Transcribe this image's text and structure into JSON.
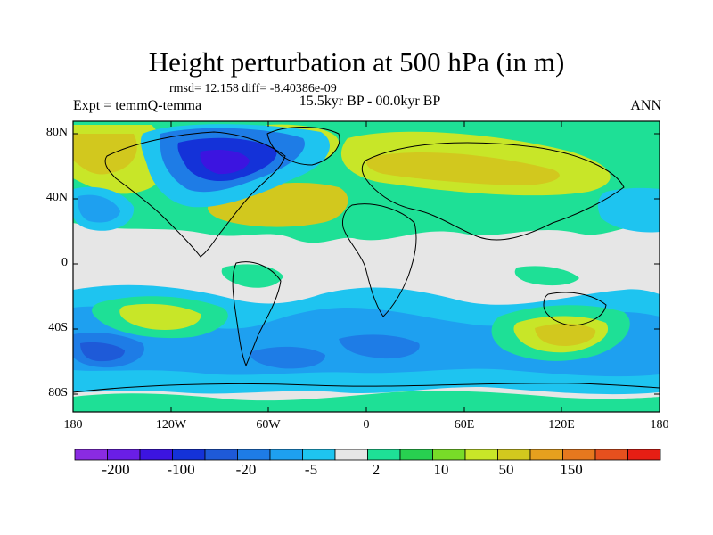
{
  "title": "Height perturbation at 500 hPa (in m)",
  "stats": "rmsd= 12.158 diff= -8.40386e-09",
  "experiment": "Expt = temmQ-temma",
  "period": "15.5kyr BP - 00.0kyr BP",
  "season": "ANN",
  "lat_ticks": [
    "80N",
    "40N",
    "0",
    "40S",
    "80S"
  ],
  "lon_ticks": [
    "180",
    "120W",
    "60W",
    "0",
    "60E",
    "120E",
    "180"
  ],
  "colorbar": {
    "colors": [
      "#8a2be2",
      "#6a1ee6",
      "#3c14e0",
      "#1432d8",
      "#1e5ad8",
      "#1e7ce6",
      "#1ea0f0",
      "#1ec4f0",
      "#e6e6e6",
      "#1ee096",
      "#28d050",
      "#78dc28",
      "#c8e628",
      "#d2c81e",
      "#e6a01e",
      "#e6781e",
      "#e6501e",
      "#e61e14"
    ],
    "tick_labels": [
      "-200",
      "-100",
      "-20",
      "-5",
      "2",
      "10",
      "50",
      "150"
    ]
  }
}
